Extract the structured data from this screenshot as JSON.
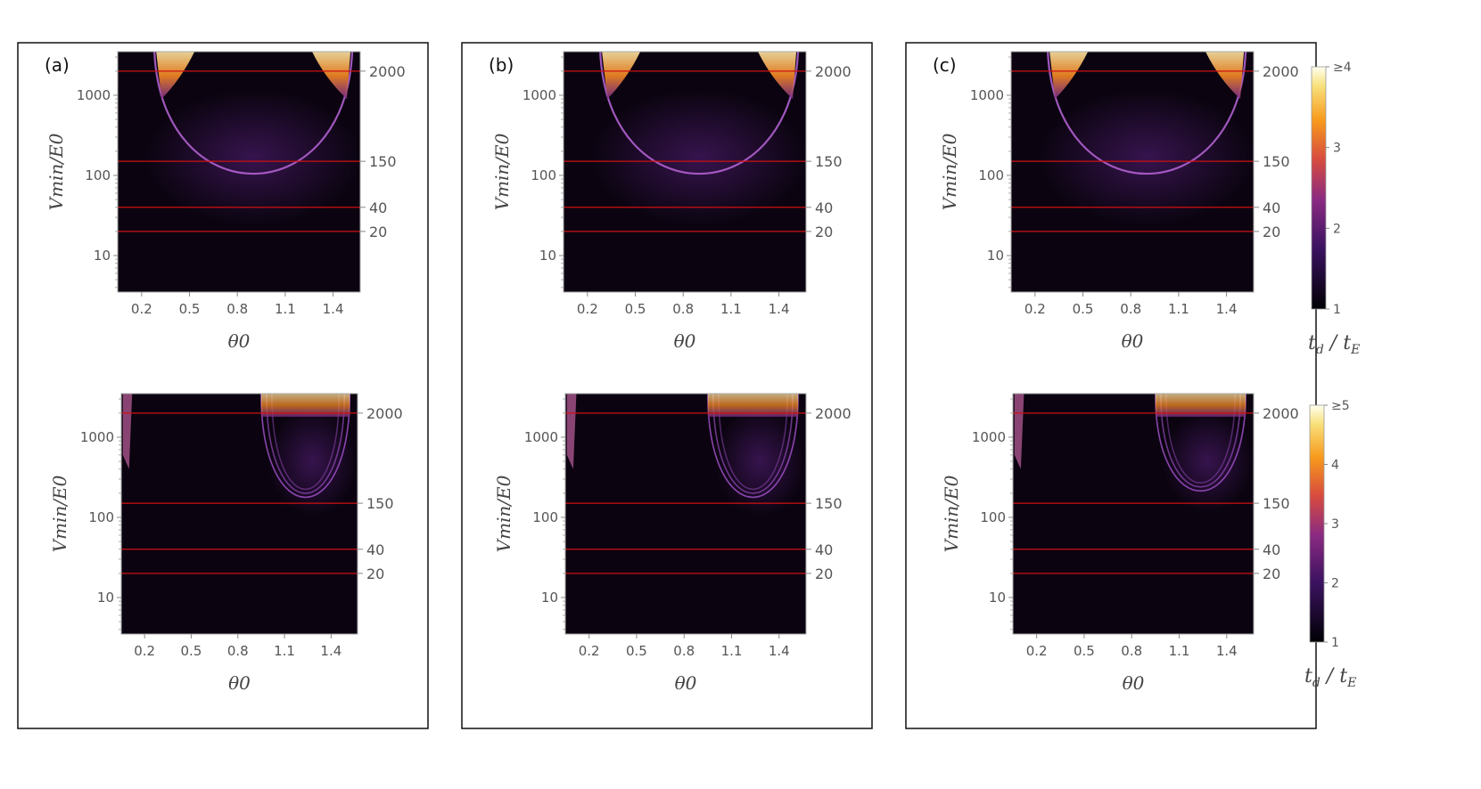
{
  "figure": {
    "panels": [
      {
        "tag": "(a)"
      },
      {
        "tag": "(b)"
      },
      {
        "tag": "(c)"
      }
    ]
  },
  "colorbars": [
    {
      "label": "t_d / t_E",
      "label_display": "t",
      "ticks": [
        "1",
        "2",
        "3",
        "≥4"
      ],
      "range": [
        1,
        4
      ]
    },
    {
      "label": "t_d / t_E",
      "label_display": "t",
      "ticks": [
        "1",
        "2",
        "3",
        "4",
        "≥5"
      ],
      "range": [
        1,
        5
      ]
    }
  ],
  "colors": {
    "background_low": "#0b0410",
    "purple": "#6a2a9a",
    "orange": "#f58a1f",
    "yellow": "#ffe39a",
    "reference_line": "#d01010"
  },
  "chart_data": [
    {
      "type": "heatmap",
      "panel": "(a)",
      "row": "top",
      "xlabel": "θ0",
      "ylabel": "Vmin/E0",
      "yscale": "log",
      "xticks": [
        "0.2",
        "0.5",
        "0.8",
        "1.1",
        "1.4"
      ],
      "yticks": [
        "10",
        "100",
        "1000"
      ],
      "right_ticks": [
        "2000",
        "150",
        "40",
        "20"
      ],
      "reference_lines": [
        2000,
        150,
        40,
        20
      ],
      "xlim": [
        0.05,
        1.57
      ],
      "ylim": [
        3.5,
        3500
      ],
      "colorscale_max": 4
    },
    {
      "type": "heatmap",
      "panel": "(b)",
      "row": "top",
      "xlabel": "θ0",
      "ylabel": "Vmin/E0",
      "yscale": "log",
      "xticks": [
        "0.2",
        "0.5",
        "0.8",
        "1.1",
        "1.4"
      ],
      "yticks": [
        "10",
        "100",
        "1000"
      ],
      "right_ticks": [
        "2000",
        "150",
        "40",
        "20"
      ],
      "reference_lines": [
        2000,
        150,
        40,
        20
      ],
      "xlim": [
        0.05,
        1.57
      ],
      "ylim": [
        3.5,
        3500
      ],
      "colorscale_max": 4
    },
    {
      "type": "heatmap",
      "panel": "(c)",
      "row": "top",
      "xlabel": "θ0",
      "ylabel": "Vmin/E0",
      "yscale": "log",
      "xticks": [
        "0.2",
        "0.5",
        "0.8",
        "1.1",
        "1.4"
      ],
      "yticks": [
        "10",
        "100",
        "1000"
      ],
      "right_ticks": [
        "2000",
        "150",
        "40",
        "20"
      ],
      "reference_lines": [
        2000,
        150,
        40,
        20
      ],
      "xlim": [
        0.05,
        1.57
      ],
      "ylim": [
        3.5,
        3500
      ],
      "colorscale_max": 4
    },
    {
      "type": "heatmap",
      "panel": "(a)",
      "row": "bottom",
      "xlabel": "θ0",
      "ylabel": "Vmin/E0",
      "yscale": "log",
      "xticks": [
        "0.2",
        "0.5",
        "0.8",
        "1.1",
        "1.4"
      ],
      "yticks": [
        "10",
        "100",
        "1000"
      ],
      "right_ticks": [
        "2000",
        "150",
        "40",
        "20"
      ],
      "reference_lines": [
        2000,
        150,
        40,
        20
      ],
      "xlim": [
        0.05,
        1.57
      ],
      "ylim": [
        3.5,
        3500
      ],
      "colorscale_max": 5
    },
    {
      "type": "heatmap",
      "panel": "(b)",
      "row": "bottom",
      "xlabel": "θ0",
      "ylabel": "Vmin/E0",
      "yscale": "log",
      "xticks": [
        "0.2",
        "0.5",
        "0.8",
        "1.1",
        "1.4"
      ],
      "yticks": [
        "10",
        "100",
        "1000"
      ],
      "right_ticks": [
        "2000",
        "150",
        "40",
        "20"
      ],
      "reference_lines": [
        2000,
        150,
        40,
        20
      ],
      "xlim": [
        0.05,
        1.57
      ],
      "ylim": [
        3.5,
        3500
      ],
      "colorscale_max": 5
    },
    {
      "type": "heatmap",
      "panel": "(c)",
      "row": "bottom",
      "xlabel": "θ0",
      "ylabel": "Vmin/E0",
      "yscale": "log",
      "xticks": [
        "0.2",
        "0.5",
        "0.8",
        "1.1",
        "1.4"
      ],
      "yticks": [
        "10",
        "100",
        "1000"
      ],
      "right_ticks": [
        "2000",
        "150",
        "40",
        "20"
      ],
      "reference_lines": [
        2000,
        150,
        40,
        20
      ],
      "xlim": [
        0.05,
        1.57
      ],
      "ylim": [
        3.5,
        3500
      ],
      "colorscale_max": 5
    }
  ]
}
